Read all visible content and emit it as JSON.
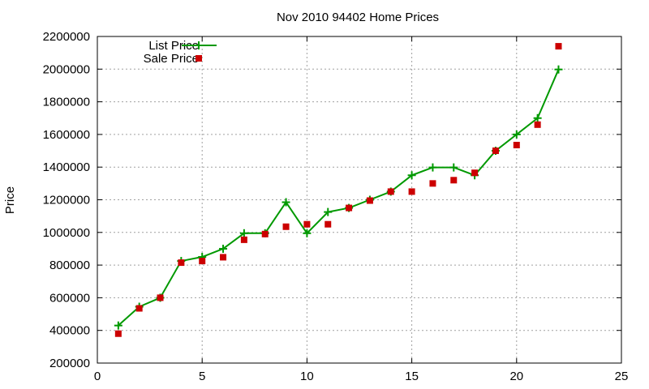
{
  "chart_data": {
    "type": "line",
    "title": "Nov 2010 94402 Home Prices",
    "xlabel": "",
    "ylabel": "Price",
    "xlim": [
      0,
      25
    ],
    "ylim": [
      200000,
      2200000
    ],
    "xticks": [
      0,
      5,
      10,
      15,
      20,
      25
    ],
    "yticks": [
      200000,
      400000,
      600000,
      800000,
      1000000,
      1200000,
      1400000,
      1600000,
      1800000,
      2000000,
      2200000
    ],
    "grid": true,
    "legend_position": "top-left",
    "series": [
      {
        "name": "List Price",
        "style": "line-plus",
        "color": "#009900",
        "x": [
          1,
          2,
          3,
          4,
          5,
          6,
          7,
          8,
          9,
          10,
          11,
          12,
          13,
          14,
          15,
          16,
          17,
          18,
          19,
          20,
          21,
          22
        ],
        "y": [
          430000,
          545000,
          600000,
          825000,
          850000,
          900000,
          995000,
          995000,
          1185000,
          995000,
          1125000,
          1150000,
          1200000,
          1250000,
          1350000,
          1398000,
          1398000,
          1350000,
          1500000,
          1600000,
          1700000,
          1998000
        ]
      },
      {
        "name": "Sale Price",
        "style": "square",
        "color": "#cc0000",
        "x": [
          1,
          2,
          3,
          4,
          5,
          6,
          7,
          8,
          9,
          10,
          11,
          12,
          13,
          14,
          15,
          16,
          17,
          18,
          19,
          20,
          21,
          22
        ],
        "y": [
          380000,
          535000,
          600000,
          815000,
          825000,
          848000,
          955000,
          990000,
          1035000,
          1050000,
          1050000,
          1150000,
          1195000,
          1250000,
          1250000,
          1300000,
          1320000,
          1365000,
          1500000,
          1535000,
          1660000,
          2140000
        ]
      }
    ]
  }
}
